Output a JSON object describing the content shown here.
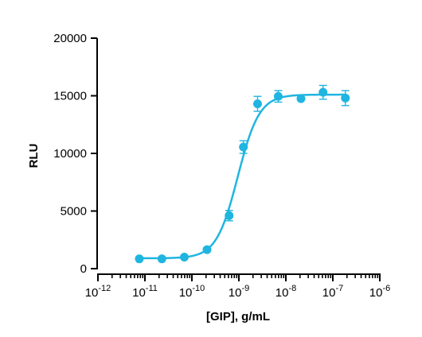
{
  "chart_data": {
    "type": "scatter",
    "xlabel": "[GIP], g/mL",
    "ylabel": "RLU",
    "x_scale": "log",
    "xlim": [
      1e-12,
      1e-06
    ],
    "ylim": [
      0,
      20000
    ],
    "grid": false,
    "x_ticks": [
      {
        "base": "10",
        "exp": "-12",
        "value": 1e-12
      },
      {
        "base": "10",
        "exp": "-11",
        "value": 1e-11
      },
      {
        "base": "10",
        "exp": "-10",
        "value": 1e-10
      },
      {
        "base": "10",
        "exp": "-9",
        "value": 1e-09
      },
      {
        "base": "10",
        "exp": "-8",
        "value": 1e-08
      },
      {
        "base": "10",
        "exp": "-7",
        "value": 1e-07
      },
      {
        "base": "10",
        "exp": "-6",
        "value": 1e-06
      }
    ],
    "y_ticks": [
      {
        "label": "0",
        "value": 0
      },
      {
        "label": "5000",
        "value": 5000
      },
      {
        "label": "10000",
        "value": 10000
      },
      {
        "label": "15000",
        "value": 15000
      },
      {
        "label": "20000",
        "value": 20000
      }
    ],
    "series": [
      {
        "color": "#1fb5e0",
        "points": [
          {
            "x": 7.6e-12,
            "y": 850,
            "err": 0
          },
          {
            "x": 2.3e-11,
            "y": 850,
            "err": 0
          },
          {
            "x": 6.9e-11,
            "y": 1000,
            "err": 0
          },
          {
            "x": 2.1e-10,
            "y": 1650,
            "err": 0
          },
          {
            "x": 6.2e-10,
            "y": 4600,
            "err": 450
          },
          {
            "x": 1.25e-09,
            "y": 10550,
            "err": 550
          },
          {
            "x": 2.5e-09,
            "y": 14300,
            "err": 650
          },
          {
            "x": 6.9e-09,
            "y": 14950,
            "err": 500
          },
          {
            "x": 2.1e-08,
            "y": 14750,
            "err": 0
          },
          {
            "x": 6.2e-08,
            "y": 15300,
            "err": 600
          },
          {
            "x": 1.85e-07,
            "y": 14800,
            "err": 650
          }
        ],
        "fit": {
          "model": "4PL",
          "bottom": 900,
          "top": 15100,
          "ec50": 9.5e-10,
          "hill": 1.9
        }
      }
    ]
  }
}
